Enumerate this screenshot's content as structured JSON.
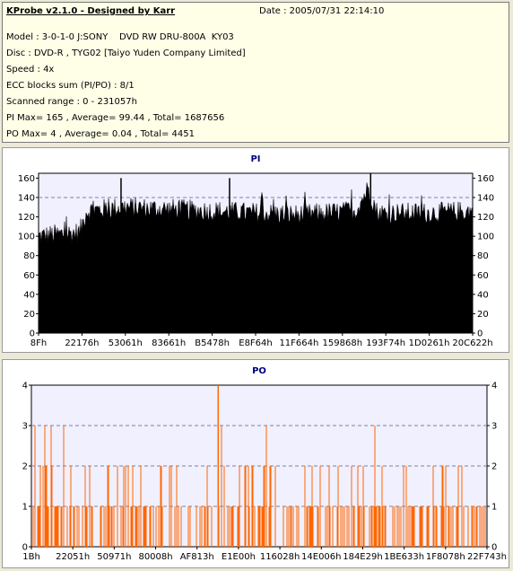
{
  "info": {
    "title": "KProbe v2.1.0 - Designed by Karr",
    "date": "Date : 2005/07/31 22:14:10",
    "lines": [
      "Model : 3-0-1-0 J:SONY    DVD RW DRU-800A  KY03",
      "Disc : DVD-R , TYG02 [Taiyo Yuden Company Limited]",
      "Speed : 4x",
      "ECC blocks sum (PI/PO) : 8/1",
      "Scanned range : 0 - 231057h",
      "PI Max= 165 , Average= 99.44 , Total= 1687656",
      "PO Max= 4 , Average= 0.04 , Total= 4451"
    ]
  },
  "chart_data": [
    {
      "type": "area",
      "title": "PI",
      "ylim": [
        0,
        165
      ],
      "yticks": [
        "0",
        "20",
        "40",
        "60",
        "80",
        "100",
        "120",
        "140",
        "160"
      ],
      "xticks": [
        "8Fh",
        "22176h",
        "53061h",
        "83661h",
        "B5478h",
        "E8F64h",
        "11F664h",
        "159868h",
        "193F74h",
        "1D0261h",
        "20C622h"
      ],
      "series_color": "#000000",
      "profile": [
        {
          "x": 0.0,
          "y": 100
        },
        {
          "x": 0.095,
          "y": 104
        },
        {
          "x": 0.11,
          "y": 126
        },
        {
          "x": 0.2,
          "y": 130
        },
        {
          "x": 0.4,
          "y": 126
        },
        {
          "x": 0.6,
          "y": 122
        },
        {
          "x": 0.73,
          "y": 126
        },
        {
          "x": 0.76,
          "y": 150
        },
        {
          "x": 0.78,
          "y": 124
        },
        {
          "x": 0.9,
          "y": 124
        },
        {
          "x": 1.0,
          "y": 126
        }
      ],
      "grid_lines": [
        100,
        140
      ]
    },
    {
      "type": "bar",
      "title": "PO",
      "ylim": [
        0,
        4
      ],
      "yticks": [
        "0",
        "1",
        "2",
        "3",
        "4"
      ],
      "xticks": [
        "1Bh",
        "22051h",
        "50971h",
        "80008h",
        "AF813h",
        "E1E00h",
        "116028h",
        "14E006h",
        "184E29h",
        "1BE633h",
        "1F8078h",
        "22F743h"
      ],
      "series_color": "#ff6600",
      "max": 4
    }
  ]
}
